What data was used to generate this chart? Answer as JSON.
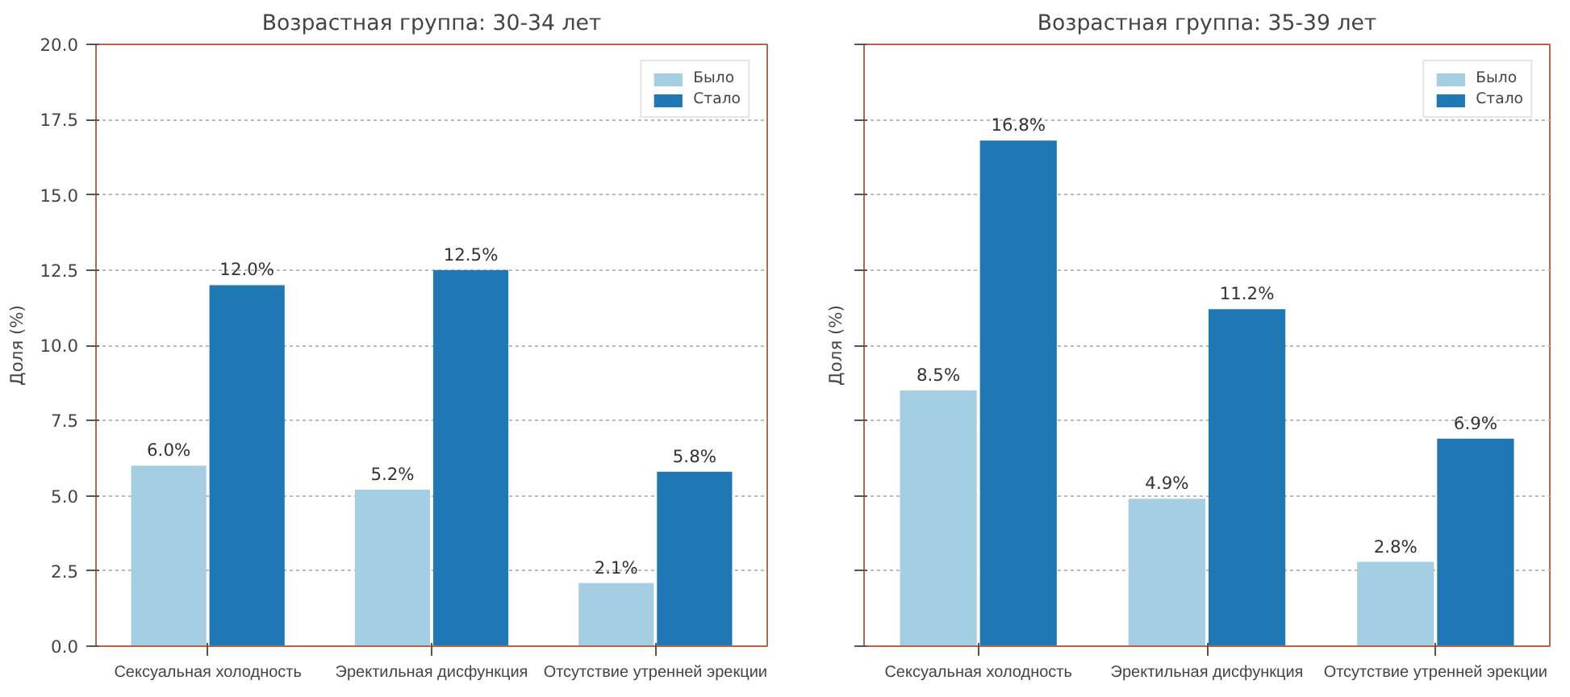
{
  "chart_data": [
    {
      "type": "bar",
      "title": "Возрастная группа: 30-34 лет",
      "ylabel": "Доля (%)",
      "categories": [
        "Сексуальная холодность",
        "Эректильная дисфункция",
        "Отсутствие утренней эрекции"
      ],
      "series": [
        {
          "name": "Было",
          "color": "#a6cee3",
          "values": [
            6.0,
            5.2,
            2.1
          ],
          "value_labels": [
            "6.0%",
            "5.2%",
            "2.1%"
          ]
        },
        {
          "name": "Стало",
          "color": "#1f78b4",
          "values": [
            12.0,
            12.5,
            5.8
          ],
          "value_labels": [
            "12.0%",
            "12.5%",
            "5.8%"
          ]
        }
      ],
      "ylim": [
        0,
        20
      ],
      "yticks": [
        {
          "value": 0,
          "label": "0.0"
        },
        {
          "value": 2.5,
          "label": "2.5"
        },
        {
          "value": 5,
          "label": "5.0"
        },
        {
          "value": 7.5,
          "label": "7.5"
        },
        {
          "value": 10,
          "label": "10.0"
        },
        {
          "value": 12.5,
          "label": "12.5"
        },
        {
          "value": 15,
          "label": "15.0"
        },
        {
          "value": 17.5,
          "label": "17.5"
        },
        {
          "value": 20,
          "label": "20.0"
        }
      ],
      "grid": "y",
      "legend": "top right"
    },
    {
      "type": "bar",
      "title": "Возрастная группа: 35-39 лет",
      "ylabel": "Доля (%)",
      "categories": [
        "Сексуальная холодность",
        "Эректильная дисфункция",
        "Отсутствие утренней эрекции"
      ],
      "series": [
        {
          "name": "Было",
          "color": "#a6cee3",
          "values": [
            8.5,
            4.9,
            2.8
          ],
          "value_labels": [
            "8.5%",
            "4.9%",
            "2.8%"
          ]
        },
        {
          "name": "Стало",
          "color": "#1f78b4",
          "values": [
            16.8,
            11.2,
            6.9
          ],
          "value_labels": [
            "16.8%",
            "11.2%",
            "6.9%"
          ]
        }
      ],
      "ylim": [
        0,
        20
      ],
      "yticks": [
        {
          "value": 0,
          "label": null
        },
        {
          "value": 2.5,
          "label": null
        },
        {
          "value": 5,
          "label": null
        },
        {
          "value": 7.5,
          "label": null
        },
        {
          "value": 10,
          "label": null
        },
        {
          "value": 12.5,
          "label": null
        },
        {
          "value": 15,
          "label": null
        },
        {
          "value": 17.5,
          "label": null
        },
        {
          "value": 20,
          "label": null
        }
      ],
      "grid": "y",
      "legend": "top right",
      "tick_labels": "x"
    }
  ]
}
